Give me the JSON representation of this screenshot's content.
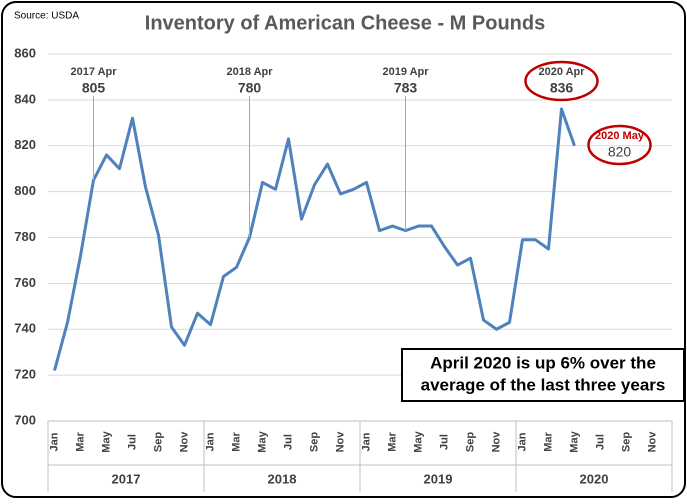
{
  "chart_data": {
    "type": "line",
    "title": "Inventory of American Cheese - M Pounds",
    "source": "Source: USDA",
    "categories": [
      "Jan",
      null,
      "Mar",
      null,
      "May",
      null,
      "Jul",
      null,
      "Sep",
      null,
      "Nov",
      null,
      "Jan",
      null,
      "Mar",
      null,
      "May",
      null,
      "Jul",
      null,
      "Sep",
      null,
      "Nov",
      null,
      "Jan",
      null,
      "Mar",
      null,
      "May",
      null,
      "Jul",
      null,
      "Sep",
      null,
      "Nov",
      null,
      "Jan",
      null,
      "Mar",
      null,
      "May",
      null,
      "Jul",
      null,
      "Sep",
      null,
      "Nov",
      null
    ],
    "year_groups": [
      "2017",
      "2018",
      "2019",
      "2020"
    ],
    "series": [
      {
        "name": "Inventory",
        "color": "#4f81bd",
        "values": [
          722,
          743,
          772,
          805,
          816,
          810,
          832,
          802,
          781,
          741,
          733,
          747,
          742,
          763,
          767,
          780,
          804,
          801,
          823,
          788,
          803,
          812,
          799,
          801,
          804,
          783,
          785,
          783,
          785,
          785,
          776,
          768,
          771,
          744,
          740,
          743,
          779,
          779,
          775,
          836,
          820,
          null,
          null,
          null,
          null,
          null,
          null,
          null
        ],
        "point_labels": [
          null,
          null,
          null,
          "2017 Apr",
          null,
          null,
          null,
          null,
          null,
          null,
          null,
          null,
          null,
          null,
          null,
          "2018 Apr",
          null,
          null,
          null,
          null,
          null,
          null,
          null,
          null,
          null,
          null,
          null,
          "2019 Apr",
          null,
          null,
          null,
          null,
          null,
          null,
          null,
          null,
          null,
          null,
          null,
          "2020 Apr",
          "2020 May",
          null,
          null,
          null,
          null,
          null,
          null,
          null
        ]
      }
    ],
    "ylim": [
      700,
      860
    ],
    "yticks": [
      700,
      720,
      740,
      760,
      780,
      800,
      820,
      840,
      860
    ],
    "grid": true,
    "highlight_color": "#c00000",
    "callout": [
      "April 2020 is up 6% over the",
      "average of the last three years"
    ]
  }
}
